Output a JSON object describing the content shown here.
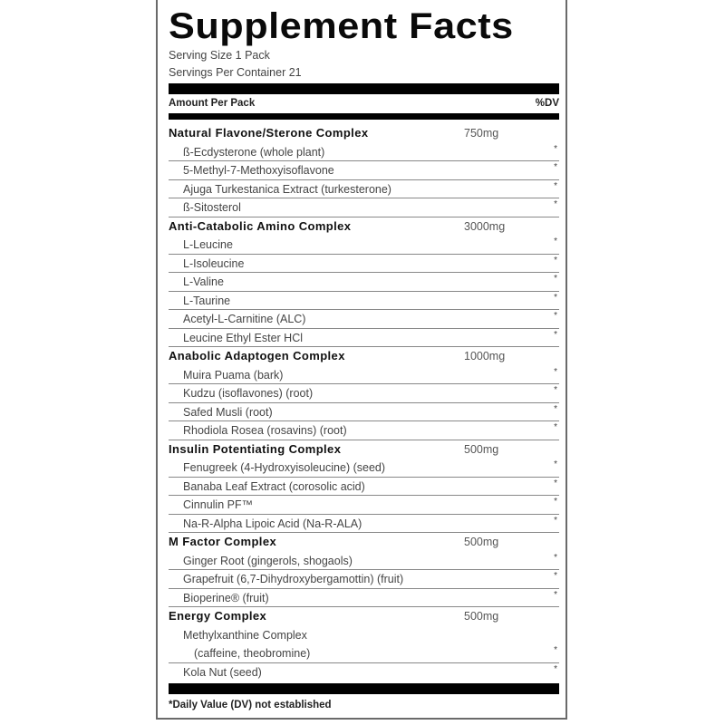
{
  "title": "Supplement Facts",
  "serving_size": "Serving Size 1 Pack",
  "servings_per_container": "Servings Per Container 21",
  "amount_header": "Amount Per Pack",
  "dv_header": "%DV",
  "groups": [
    {
      "name": "Natural Flavone/Sterone Complex",
      "amount": "750mg",
      "items": [
        "ß-Ecdysterone (whole plant)",
        "5-Methyl-7-Methoxyisoflavone",
        "Ajuga Turkestanica Extract (turkesterone)",
        "ß-Sitosterol"
      ]
    },
    {
      "name": "Anti-Catabolic Amino Complex",
      "amount": "3000mg",
      "items": [
        "L-Leucine",
        "L-Isoleucine",
        "L-Valine",
        "L-Taurine",
        "Acetyl-L-Carnitine (ALC)",
        "Leucine Ethyl Ester HCl"
      ]
    },
    {
      "name": "Anabolic Adaptogen Complex",
      "amount": "1000mg",
      "items": [
        "Muira Puama (bark)",
        "Kudzu (isoflavones) (root)",
        "Safed Musli (root)",
        "Rhodiola Rosea (rosavins) (root)"
      ]
    },
    {
      "name": "Insulin Potentiating Complex",
      "amount": "500mg",
      "items": [
        "Fenugreek (4-Hydroxyisoleucine) (seed)",
        "Banaba Leaf Extract (corosolic acid)",
        "Cinnulin PF™",
        "Na-R-Alpha Lipoic Acid (Na-R-ALA)"
      ]
    },
    {
      "name": "M Factor Complex",
      "amount": "500mg",
      "items": [
        "Ginger Root (gingerols, shogaols)",
        "Grapefruit (6,7-Dihydroxybergamottin) (fruit)",
        "Bioperine® (fruit)"
      ]
    },
    {
      "name": "Energy Complex",
      "amount": "500mg",
      "items": [
        "Methylxanthine Complex",
        "(caffeine, theobromine)",
        "Kola Nut (seed)"
      ]
    }
  ],
  "dv_marker": "*",
  "footnote": "*Daily Value (DV) not established"
}
